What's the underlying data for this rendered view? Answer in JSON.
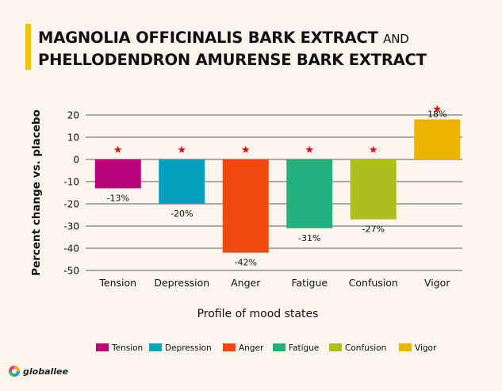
{
  "header": {
    "title_line1_main": "MAGNOLIA OFFICINALIS BARK EXTRACT",
    "title_line1_suffix": "AND",
    "title_line2": "PHELLODENDRON AMURENSE BARK EXTRACT",
    "accent_color": "#f2c500"
  },
  "brand": {
    "name": "globallee"
  },
  "chart_data": {
    "type": "bar",
    "title": "MAGNOLIA OFFICINALIS BARK EXTRACT AND PHELLODENDRON AMURENSE BARK EXTRACT",
    "xlabel": "Profile of mood states",
    "ylabel": "Percent change vs. placebo",
    "categories": [
      "Tension",
      "Depression",
      "Anger",
      "Fatigue",
      "Confusion",
      "Vigor"
    ],
    "values": [
      -13,
      -20,
      -42,
      -31,
      -27,
      18
    ],
    "data_labels": [
      "-13%",
      "-20%",
      "-42%",
      "-31%",
      "-27%",
      "18%"
    ],
    "colors": [
      "#b5047a",
      "#04a0bd",
      "#f04a10",
      "#22b07e",
      "#adbf1c",
      "#ecb300"
    ],
    "significance_marker": "★",
    "significance_color": "#e8000f",
    "ylim": [
      -50,
      20
    ],
    "yticks": [
      20,
      10,
      0,
      -10,
      -20,
      -30,
      -40,
      -50
    ],
    "grid": true,
    "legend_position": "bottom",
    "legend_labels": [
      "Tension",
      "Depression",
      "Anger",
      "Fatigue",
      "Confusion",
      "Vigor"
    ]
  }
}
